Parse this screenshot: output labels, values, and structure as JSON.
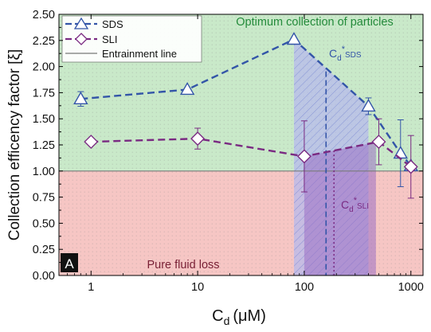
{
  "chart_data": {
    "type": "line",
    "panel_label": "A",
    "xlabel_main": "C",
    "xlabel_sub": "d",
    "xlabel_unit": "(μM)",
    "ylabel": "Collection efficency factor [ξ]",
    "x_scale": "log",
    "xlim": [
      0.5,
      1300
    ],
    "ylim": [
      0.0,
      2.5
    ],
    "x_ticks": [
      1,
      10,
      100,
      1000
    ],
    "x_tick_labels": [
      "1",
      "10",
      "100",
      "1000"
    ],
    "y_ticks": [
      0.0,
      0.25,
      0.5,
      0.75,
      1.0,
      1.25,
      1.5,
      1.75,
      2.0,
      2.25,
      2.5
    ],
    "y_tick_labels": [
      "0.00",
      "0.25",
      "0.50",
      "0.75",
      "1.00",
      "1.25",
      "1.50",
      "1.75",
      "2.00",
      "2.25",
      "2.50"
    ],
    "regions": {
      "top_label": "Optimum collection of particles",
      "bottom_label": "Pure fluid loss",
      "top_color": "#c9e9c9",
      "bottom_color": "#f6c6c4"
    },
    "entrainment_line": {
      "y": 1.0,
      "name": "Entrainment line",
      "color": "#7a7a7a"
    },
    "series": [
      {
        "name": "SDS",
        "marker": "triangle",
        "color": "#3355a8",
        "x": [
          0.8,
          8,
          80,
          400,
          800,
          1000
        ],
        "y": [
          1.69,
          1.78,
          2.26,
          1.62,
          1.17,
          1.05
        ],
        "err": [
          0.07,
          0.0,
          0.0,
          0.08,
          0.32,
          0.0
        ]
      },
      {
        "name": "SLI",
        "marker": "diamond",
        "color": "#7a2a82",
        "x": [
          1,
          10,
          100,
          500,
          1000
        ],
        "y": [
          1.28,
          1.31,
          1.14,
          1.28,
          1.04
        ],
        "err": [
          0.0,
          0.1,
          0.34,
          0.22,
          0.3
        ]
      }
    ],
    "critical_lines": [
      {
        "label_main": "C",
        "label_sub": "SDS",
        "x": 160,
        "color": "#3355a8"
      },
      {
        "label_main": "C",
        "label_sub": "SLI",
        "x": 190,
        "color": "#7a2a82"
      }
    ],
    "label_sub_prefix": "d",
    "label_star": "*",
    "shaded_bands": [
      {
        "series": "SDS",
        "x_from": 80,
        "x_to": 400
      },
      {
        "series": "SLI",
        "x_from": 100,
        "x_to": 470
      }
    ]
  }
}
